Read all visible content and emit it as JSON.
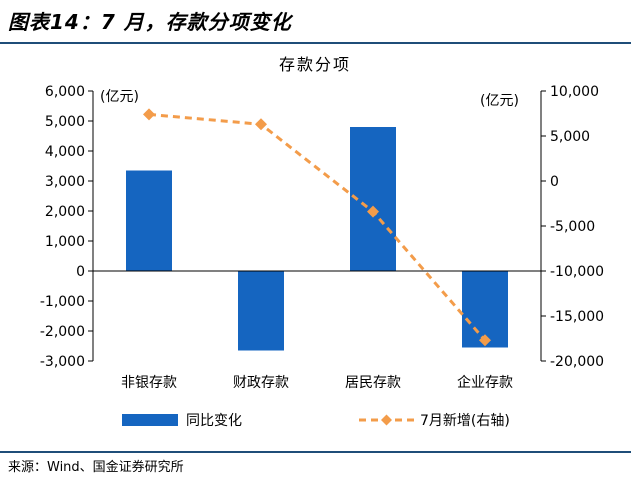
{
  "header": {
    "figure_title": "图表14：7 月，存款分项变化"
  },
  "footer": {
    "source": "来源：Wind、国金证券研究所"
  },
  "chart_data": {
    "type": "bar",
    "title": "存款分项",
    "categories": [
      "非银存款",
      "财政存款",
      "居民存款",
      "企业存款"
    ],
    "left_axis": {
      "unit_label": "(亿元)",
      "ylim": [
        -3000,
        6000
      ],
      "ticks": [
        "6,000",
        "5,000",
        "4,000",
        "3,000",
        "2,000",
        "1,000",
        "0",
        "-1,000",
        "-2,000",
        "-3,000"
      ]
    },
    "right_axis": {
      "unit_label": "(亿元)",
      "ylim": [
        -20000,
        10000
      ],
      "ticks": [
        "10,000",
        "5,000",
        "0",
        "-5,000",
        "-10,000",
        "-15,000",
        "-20,000"
      ]
    },
    "series": [
      {
        "name": "同比变化",
        "type": "bar",
        "axis": "left",
        "color": "#1565c0",
        "values": [
          3350,
          -2650,
          4800,
          -2550
        ]
      },
      {
        "name": "7月新增(右轴)",
        "type": "line",
        "axis": "right",
        "color": "#f39c4a",
        "style": "dashed",
        "marker": "diamond",
        "values": [
          7400,
          6300,
          -3400,
          -17700
        ]
      }
    ],
    "legend_position": "bottom",
    "grid": false
  }
}
